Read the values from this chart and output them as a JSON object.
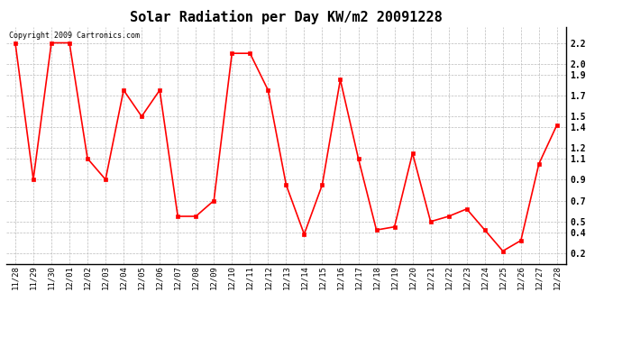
{
  "title": "Solar Radiation per Day KW/m2 20091228",
  "copyright_text": "Copyright 2009 Cartronics.com",
  "dates": [
    "11/28",
    "11/29",
    "11/30",
    "12/01",
    "12/02",
    "12/03",
    "12/04",
    "12/05",
    "12/06",
    "12/07",
    "12/08",
    "12/09",
    "12/10",
    "12/11",
    "12/12",
    "12/13",
    "12/14",
    "12/15",
    "12/16",
    "12/17",
    "12/18",
    "12/19",
    "12/20",
    "12/21",
    "12/22",
    "12/23",
    "12/24",
    "12/25",
    "12/26",
    "12/27",
    "12/28"
  ],
  "values": [
    2.2,
    0.9,
    2.2,
    2.2,
    1.1,
    0.9,
    1.75,
    1.5,
    1.75,
    0.55,
    0.55,
    0.7,
    2.1,
    2.1,
    1.75,
    0.85,
    0.38,
    0.85,
    1.85,
    1.1,
    0.42,
    0.45,
    1.15,
    0.5,
    0.55,
    0.62,
    0.42,
    0.22,
    0.32,
    1.05,
    1.42
  ],
  "line_color": "#ff0000",
  "marker_color": "#ff0000",
  "bg_color": "#ffffff",
  "plot_bg_color": "#ffffff",
  "grid_color": "#bbbbbb",
  "title_fontsize": 11,
  "copyright_fontsize": 6,
  "tick_fontsize": 6.5,
  "ytick_fontsize": 7,
  "ylim": [
    0.1,
    2.35
  ],
  "yticks": [
    0.2,
    0.4,
    0.5,
    0.7,
    0.9,
    1.1,
    1.2,
    1.4,
    1.5,
    1.7,
    1.9,
    2.0,
    2.2
  ]
}
